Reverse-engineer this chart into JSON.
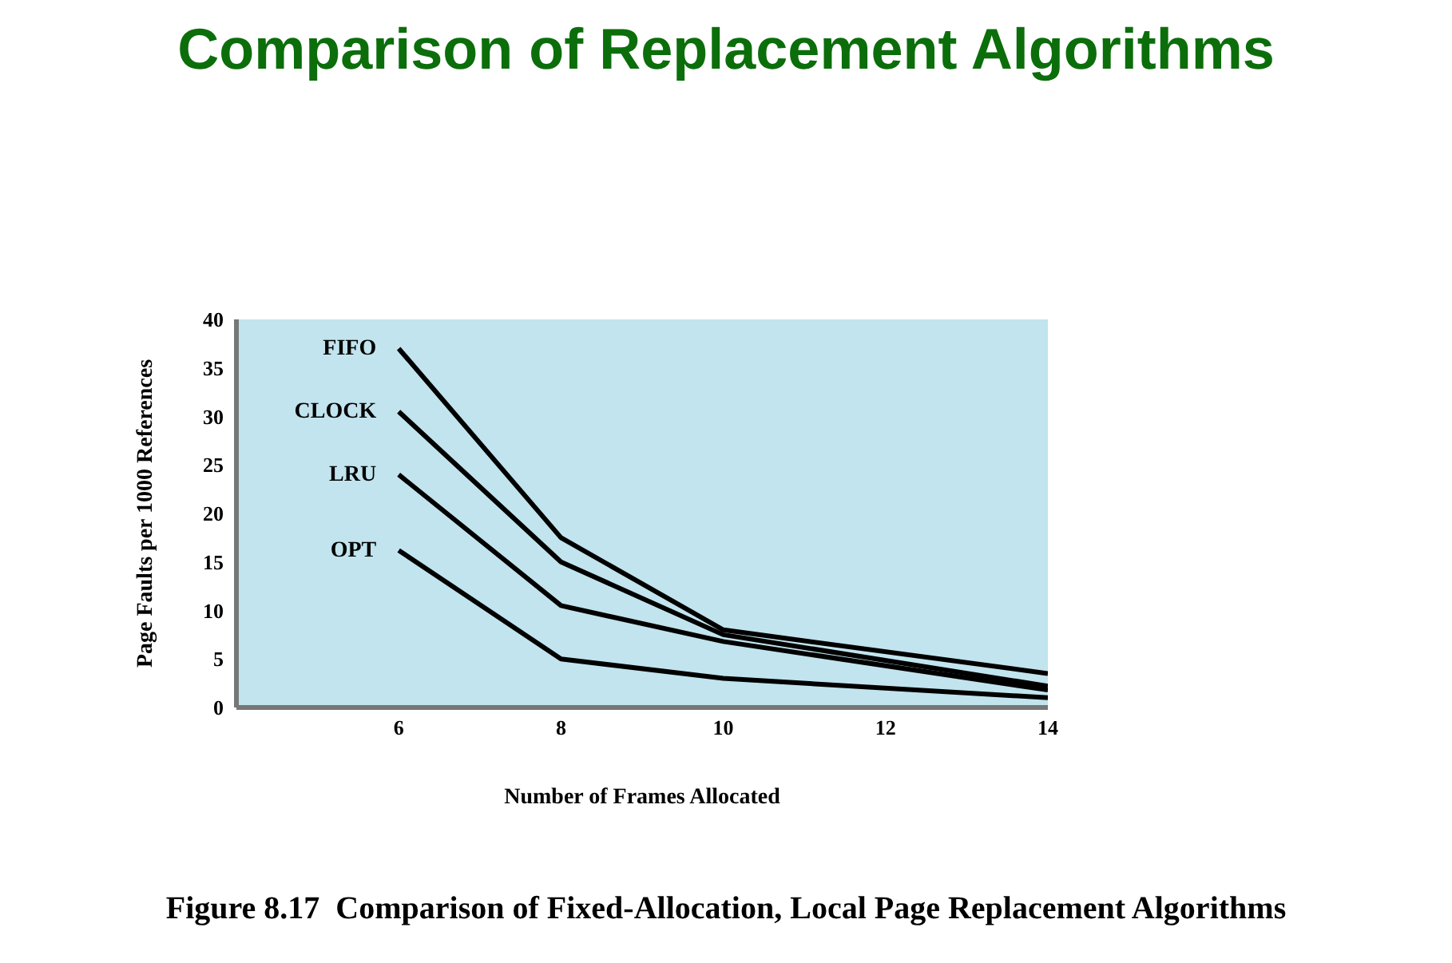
{
  "chart_data": {
    "type": "line",
    "title": "Comparison of Replacement Algorithms",
    "xlabel": "Number of Frames Allocated",
    "ylabel": "Page Faults per 1000 References",
    "x": [
      6,
      8,
      10,
      14
    ],
    "series": [
      {
        "name": "FIFO",
        "color": "#000000",
        "values": [
          37,
          17.5,
          8,
          3.5
        ]
      },
      {
        "name": "CLOCK",
        "color": "#000000",
        "values": [
          30.5,
          15,
          7.5,
          2.2
        ]
      },
      {
        "name": "LRU",
        "color": "#000000",
        "values": [
          24,
          10.5,
          6.8,
          1.8
        ]
      },
      {
        "name": "OPT",
        "color": "#000000",
        "values": [
          16.2,
          5,
          3,
          1
        ]
      }
    ],
    "xlim": [
      4,
      14
    ],
    "xticks": [
      6,
      8,
      10,
      12,
      14
    ],
    "ylim": [
      0,
      40
    ],
    "yticks": [
      0,
      5,
      10,
      15,
      20,
      25,
      30,
      35,
      40
    ],
    "marker": "none",
    "line_style": "solid",
    "annotations": [
      "Figure 8.17  Comparison of Fixed-Allocation, Local Page Replacement Algorithms"
    ]
  }
}
